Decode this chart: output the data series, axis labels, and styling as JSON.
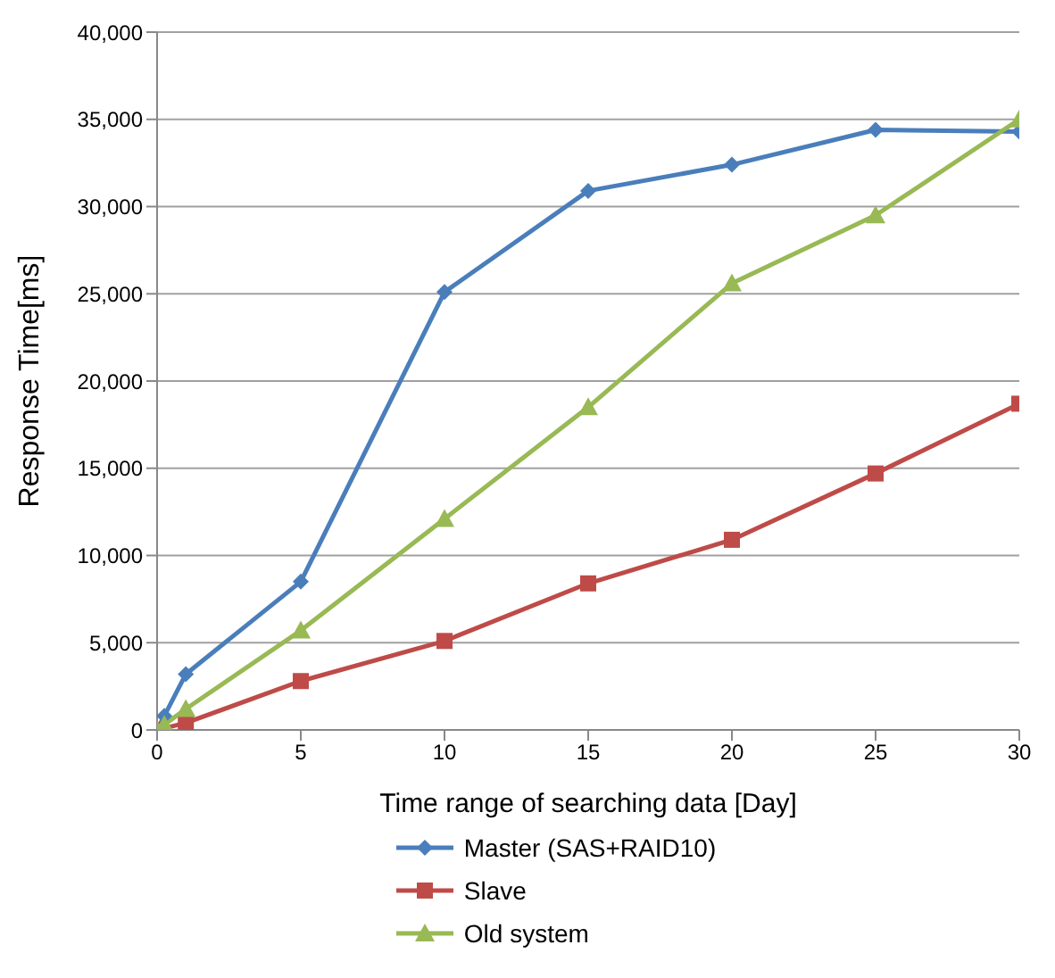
{
  "chart_data": {
    "type": "line",
    "xlabel": "Time range of searching data [Day]",
    "ylabel": "Response Time[ms]",
    "x": [
      0,
      0.25,
      1,
      5,
      10,
      15,
      20,
      25,
      30
    ],
    "xlim": [
      0,
      30
    ],
    "xticks": [
      0,
      5,
      10,
      15,
      20,
      25,
      30
    ],
    "ylim": [
      0,
      40000
    ],
    "yticks": [
      {
        "value": 0,
        "label": "0"
      },
      {
        "value": 5000,
        "label": "5,000"
      },
      {
        "value": 10000,
        "label": "10,000"
      },
      {
        "value": 15000,
        "label": "15,000"
      },
      {
        "value": 20000,
        "label": "20,000"
      },
      {
        "value": 25000,
        "label": "25,000"
      },
      {
        "value": 30000,
        "label": "30,000"
      },
      {
        "value": 35000,
        "label": "35,000"
      },
      {
        "value": 40000,
        "label": "40,000"
      }
    ],
    "grid": "y",
    "legend": "bottom",
    "series": [
      {
        "name": "Master (SAS+RAID10)",
        "color": "#4a7ebb",
        "marker": "diamond",
        "values": [
          0,
          800,
          3200,
          8500,
          25100,
          30900,
          32400,
          34400,
          34300
        ]
      },
      {
        "name": "Slave",
        "color": "#be4b48",
        "marker": "square",
        "values": [
          0,
          null,
          400,
          2800,
          5100,
          8400,
          10900,
          14700,
          18700
        ]
      },
      {
        "name": "Old system",
        "color": "#98b954",
        "marker": "triangle",
        "values": [
          0,
          300,
          1200,
          5700,
          12100,
          18500,
          25600,
          29500,
          35000
        ]
      }
    ]
  }
}
